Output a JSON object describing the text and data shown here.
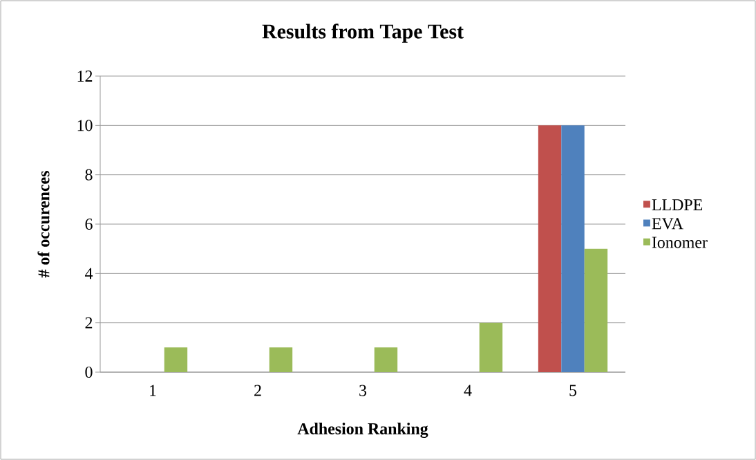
{
  "chart_data": {
    "type": "bar",
    "title": "Results from Tape Test",
    "xlabel": "Adhesion Ranking",
    "ylabel": "# of occurences",
    "categories": [
      "1",
      "2",
      "3",
      "4",
      "5"
    ],
    "series": [
      {
        "name": "LLDPE",
        "color": "#c0504d",
        "values": [
          0,
          0,
          0,
          0,
          10
        ]
      },
      {
        "name": "EVA",
        "color": "#4f81bd",
        "values": [
          0,
          0,
          0,
          0,
          10
        ]
      },
      {
        "name": "Ionomer",
        "color": "#9bbb59",
        "values": [
          1,
          1,
          1,
          2,
          5
        ]
      }
    ],
    "ylim": [
      0,
      12
    ],
    "yticks": [
      0,
      2,
      4,
      6,
      8,
      10,
      12
    ],
    "grid": "y",
    "legend": "right"
  }
}
